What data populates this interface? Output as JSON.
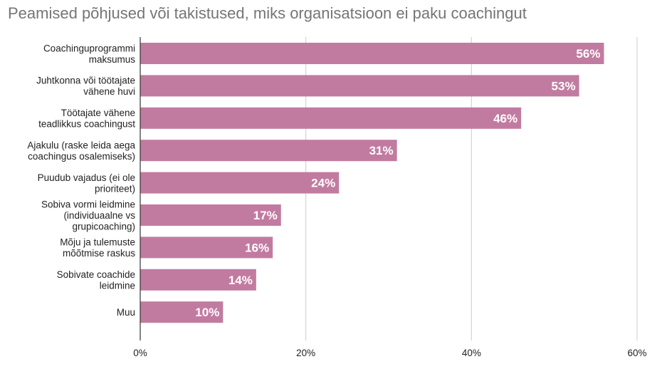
{
  "chart_data": {
    "type": "bar",
    "orientation": "horizontal",
    "title": "Peamised põhjused või takistused, miks organisatsioon ei paku coachingut",
    "categories": [
      [
        "Coachinguprogrammi",
        "maksumus"
      ],
      [
        "Juhtkonna või töötajate",
        "vähene huvi"
      ],
      [
        "Töötajate vähene",
        "teadlikkus coachingust"
      ],
      [
        "Ajakulu (raske leida aega",
        "coachingus osalemiseks)"
      ],
      [
        "Puudub vajadus (ei ole",
        "prioriteet)"
      ],
      [
        "Sobiva vormi leidmine",
        "(individuaalne vs",
        "grupicoaching)"
      ],
      [
        "Mõju ja tulemuste",
        "mõõtmise raskus"
      ],
      [
        "Sobivate coachide",
        "leidmine"
      ],
      [
        "Muu"
      ]
    ],
    "values": [
      56,
      53,
      46,
      31,
      24,
      17,
      16,
      14,
      10
    ],
    "data_labels": [
      "56%",
      "53%",
      "46%",
      "31%",
      "24%",
      "17%",
      "16%",
      "14%",
      "10%"
    ],
    "xlim": [
      0,
      60
    ],
    "xticks": [
      0,
      20,
      40,
      60
    ],
    "xtick_labels": [
      "0%",
      "20%",
      "40%",
      "60%"
    ],
    "grid": "vertical",
    "legend": "none",
    "bar_color": "#c27ba0",
    "grid_color": "#cccccc",
    "axis_color": "#333333"
  }
}
